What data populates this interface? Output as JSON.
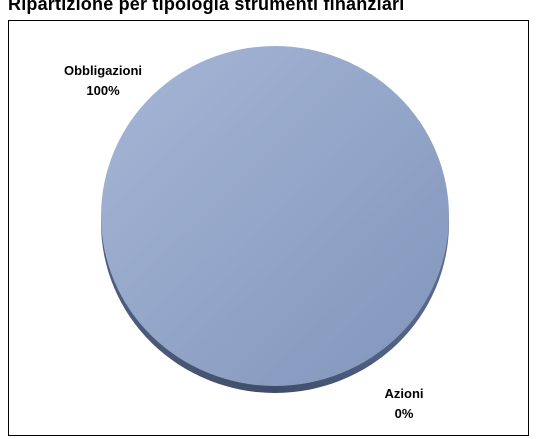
{
  "title": "Ripartizione per tipologia strumenti finanziari",
  "chart_data": {
    "type": "pie",
    "title": "Ripartizione per tipologia strumenti finanziari",
    "slices": [
      {
        "name": "Obbligazioni",
        "value": 100,
        "label": "100%",
        "color": "#8fa2c6"
      },
      {
        "name": "Azioni",
        "value": 0,
        "label": "0%",
        "color": "#c0504d"
      }
    ],
    "style": "3d-pie",
    "legend": "none"
  }
}
